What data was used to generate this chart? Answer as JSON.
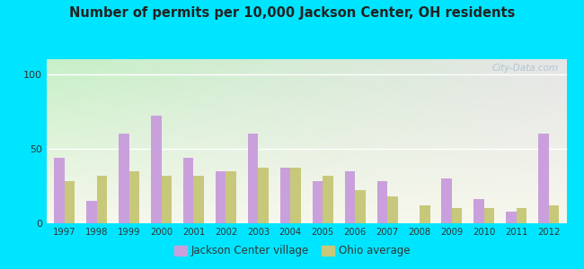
{
  "title": "Number of permits per 10,000 Jackson Center, OH residents",
  "years": [
    1997,
    1998,
    1999,
    2000,
    2001,
    2002,
    2003,
    2004,
    2005,
    2006,
    2007,
    2008,
    2009,
    2010,
    2011,
    2012
  ],
  "jackson": [
    44,
    15,
    60,
    72,
    44,
    35,
    60,
    37,
    28,
    35,
    28,
    0,
    30,
    16,
    8,
    60
  ],
  "ohio": [
    28,
    32,
    35,
    32,
    32,
    35,
    37,
    37,
    32,
    22,
    18,
    12,
    10,
    10,
    10,
    12
  ],
  "jackson_color": "#c9a0dc",
  "ohio_color": "#c8c87a",
  "ylim": [
    0,
    110
  ],
  "yticks": [
    0,
    50,
    100
  ],
  "bg_outer": "#00e5ff",
  "legend_jackson": "Jackson Center village",
  "legend_ohio": "Ohio average",
  "watermark": "City-Data.com"
}
